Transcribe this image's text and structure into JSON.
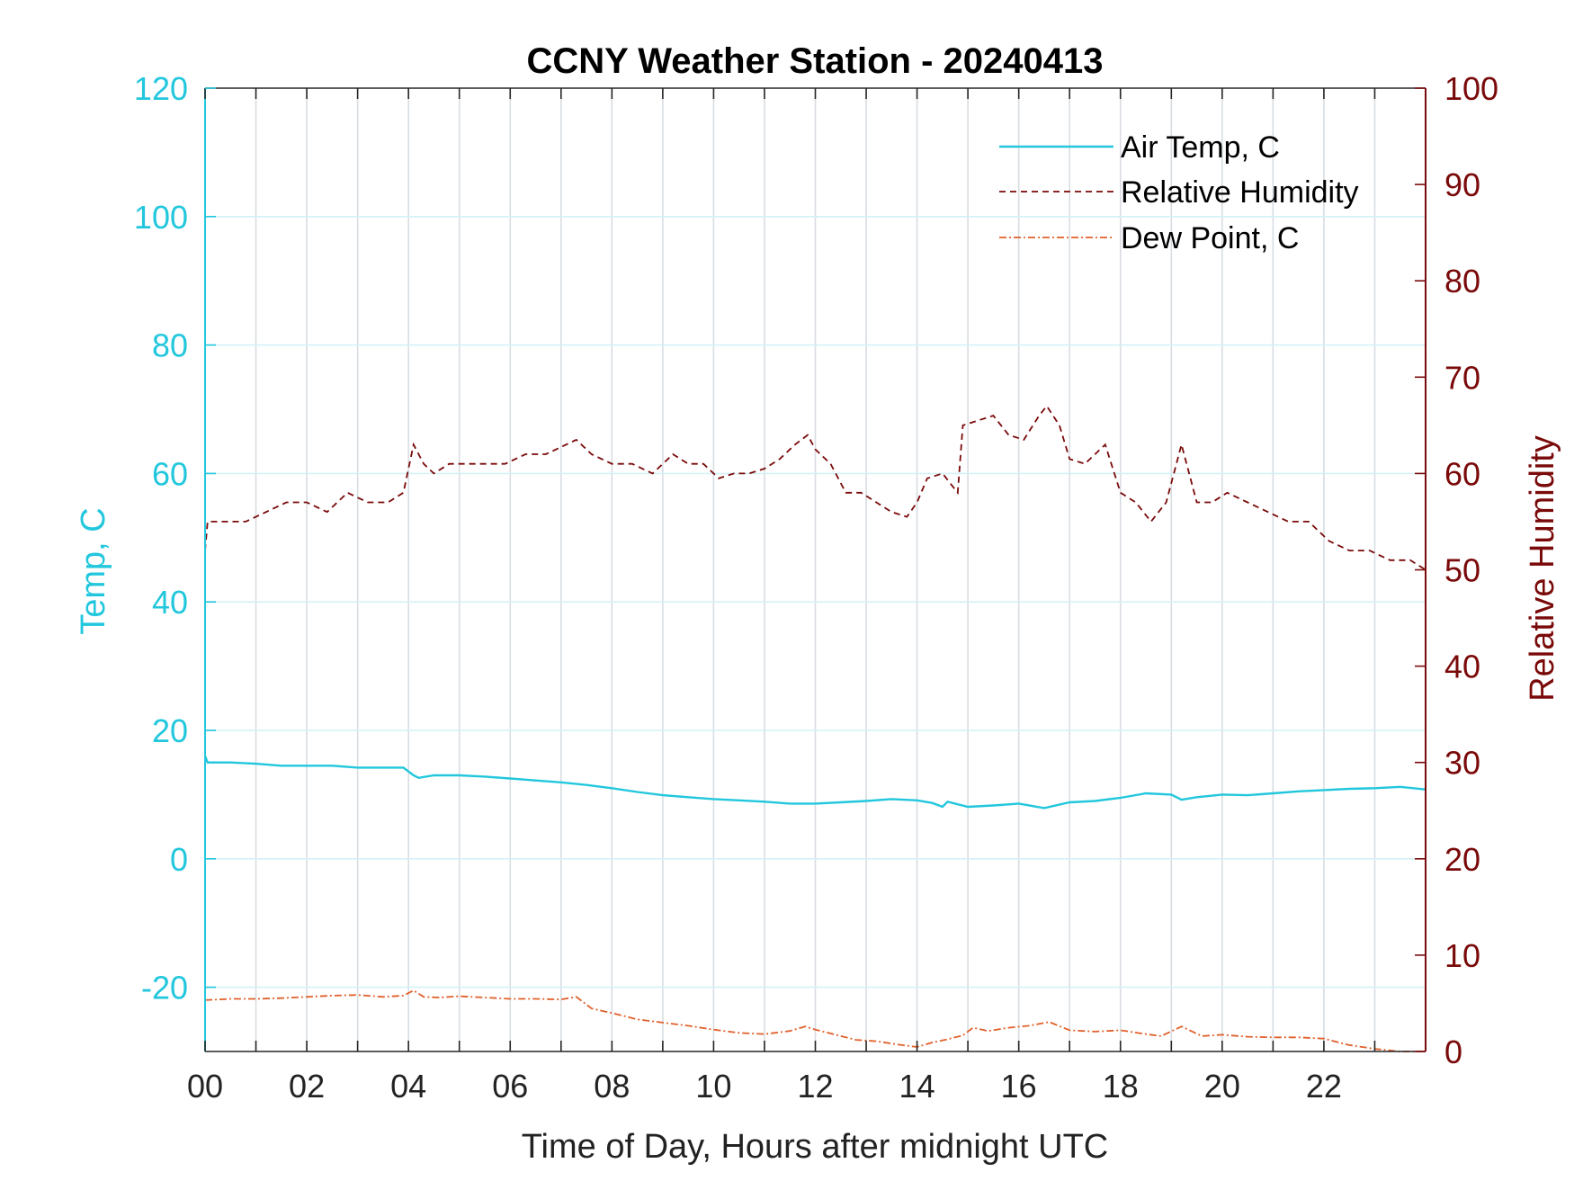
{
  "chart_data": {
    "type": "line",
    "title": "CCNY Weather Station - 20240413",
    "xlabel": "Time of Day, Hours after midnight UTC",
    "ylabel_left": "Temp, C",
    "ylabel_right": "Relative Humidity",
    "xlim": [
      0,
      24
    ],
    "ylim_left": [
      -30,
      120
    ],
    "ylim_right": [
      0,
      100
    ],
    "xticks": [
      "00",
      "02",
      "04",
      "06",
      "08",
      "10",
      "12",
      "14",
      "16",
      "18",
      "20",
      "22"
    ],
    "yticks_left": [
      "-20",
      "0",
      "20",
      "40",
      "60",
      "80",
      "100",
      "120"
    ],
    "yticks_right": [
      "0",
      "10",
      "20",
      "30",
      "40",
      "50",
      "60",
      "70",
      "80",
      "90",
      "100"
    ],
    "grid": true,
    "legend_position": "top-right",
    "colors": {
      "air_temp": "#22c7dd",
      "humidity": "#7a0a0a",
      "dew_point": "#e0602a",
      "grid": "#d8dde2"
    },
    "series": [
      {
        "name": "Air Temp, C",
        "axis": "left",
        "style": "solid",
        "x": [
          0,
          0.05,
          0.5,
          1,
          1.5,
          2,
          2.5,
          3,
          3.5,
          3.9,
          4.1,
          4.2,
          4.5,
          5,
          5.5,
          6,
          6.5,
          7,
          7.5,
          8,
          8.5,
          9,
          9.5,
          10,
          10.5,
          11,
          11.5,
          12,
          12.5,
          13,
          13.5,
          14,
          14.3,
          14.5,
          14.6,
          15,
          15.5,
          16,
          16.5,
          17,
          17.5,
          18,
          18.5,
          19,
          19.2,
          19.5,
          20,
          20.5,
          21,
          21.5,
          22,
          22.5,
          23,
          23.5,
          24
        ],
        "values": [
          16,
          15,
          15,
          14.8,
          14.5,
          14.5,
          14.5,
          14.2,
          14.2,
          14.2,
          13,
          12.6,
          13,
          13,
          12.8,
          12.5,
          12.2,
          11.9,
          11.5,
          11,
          10.4,
          9.9,
          9.6,
          9.3,
          9.1,
          8.9,
          8.6,
          8.6,
          8.8,
          9,
          9.3,
          9.1,
          8.7,
          8.1,
          8.9,
          8.1,
          8.3,
          8.6,
          7.9,
          8.8,
          9,
          9.5,
          10.2,
          10,
          9.2,
          9.6,
          10,
          9.9,
          10.2,
          10.5,
          10.7,
          10.9,
          11,
          11.2,
          10.8
        ]
      },
      {
        "name": "Relative Humidity",
        "axis": "right",
        "style": "dashed",
        "x": [
          0,
          0.05,
          0.3,
          0.8,
          1.2,
          1.6,
          2,
          2.4,
          2.8,
          3.2,
          3.6,
          3.9,
          4.1,
          4.3,
          4.5,
          4.8,
          5.1,
          5.5,
          5.9,
          6.3,
          6.7,
          7.1,
          7.3,
          7.6,
          8,
          8.4,
          8.8,
          9.2,
          9.5,
          9.8,
          10.1,
          10.4,
          10.7,
          11,
          11.3,
          11.6,
          11.85,
          12,
          12.3,
          12.6,
          12.9,
          13.2,
          13.5,
          13.8,
          14,
          14.2,
          14.5,
          14.8,
          14.9,
          15.2,
          15.5,
          15.8,
          16.1,
          16.4,
          16.55,
          16.8,
          17,
          17.3,
          17.5,
          17.7,
          18,
          18.3,
          18.6,
          18.9,
          19.2,
          19.5,
          19.8,
          20.1,
          20.5,
          20.9,
          21.3,
          21.7,
          22.1,
          22.5,
          22.9,
          23.3,
          23.7,
          24
        ],
        "values": [
          52,
          55,
          55,
          55,
          56,
          57,
          57,
          56,
          58,
          57,
          57,
          58,
          63,
          61,
          60,
          61,
          61,
          61,
          61,
          62,
          62,
          63,
          63.5,
          62,
          61,
          61,
          60,
          62,
          61,
          61,
          59.5,
          60,
          60,
          60.5,
          61.5,
          63,
          64,
          62.5,
          61,
          58,
          58,
          57,
          56,
          55.5,
          57,
          59.5,
          60,
          58,
          65,
          65.5,
          66,
          64,
          63.5,
          66,
          67,
          65,
          61.5,
          61,
          62,
          63,
          58,
          57,
          55,
          57,
          63,
          57,
          57,
          58,
          57,
          56,
          55,
          55,
          53,
          52,
          52,
          51,
          51,
          50
        ]
      },
      {
        "name": "Dew Point, C",
        "axis": "left",
        "style": "dashdot",
        "x": [
          0,
          0.5,
          1,
          1.5,
          2,
          2.5,
          3,
          3.5,
          3.9,
          4.1,
          4.3,
          4.6,
          5,
          5.5,
          6,
          6.5,
          7,
          7.3,
          7.6,
          8,
          8.5,
          9,
          9.5,
          10,
          10.5,
          11,
          11.5,
          11.8,
          12,
          12.4,
          12.8,
          13.2,
          13.6,
          14,
          14.3,
          14.6,
          14.9,
          15.1,
          15.4,
          15.8,
          16.2,
          16.6,
          17,
          17.5,
          18,
          18.5,
          18.8,
          19.2,
          19.6,
          20,
          20.5,
          21,
          21.5,
          22,
          22.5,
          23,
          23.5,
          24
        ],
        "values": [
          -22,
          -21.8,
          -21.8,
          -21.7,
          -21.5,
          -21.3,
          -21.2,
          -21.5,
          -21.3,
          -20.5,
          -21.5,
          -21.6,
          -21.4,
          -21.6,
          -21.8,
          -21.8,
          -21.9,
          -21.5,
          -23.3,
          -24,
          -25,
          -25.5,
          -26,
          -26.6,
          -27.1,
          -27.3,
          -26.8,
          -26.1,
          -26.6,
          -27.4,
          -28.2,
          -28.4,
          -28.9,
          -29.3,
          -28.6,
          -28.1,
          -27.5,
          -26.3,
          -26.8,
          -26.3,
          -26,
          -25.4,
          -26.7,
          -26.9,
          -26.7,
          -27.3,
          -27.6,
          -26.1,
          -27.6,
          -27.4,
          -27.7,
          -27.8,
          -27.8,
          -28,
          -29,
          -29.6,
          -30,
          -30
        ]
      }
    ]
  }
}
